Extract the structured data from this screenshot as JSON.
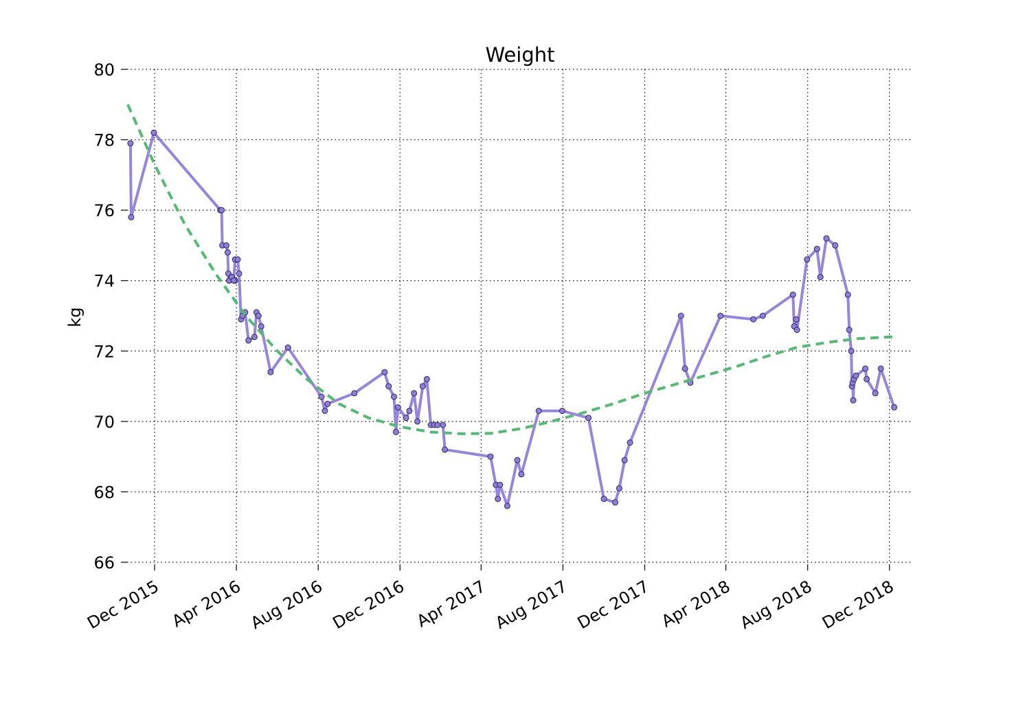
{
  "chart_data": {
    "type": "line",
    "title": "Weight",
    "xlabel": "",
    "ylabel": "kg",
    "xlim": [
      "2015-10-21",
      "2019-01-01"
    ],
    "ylim": [
      66,
      80
    ],
    "grid": true,
    "grid_style": "dotted",
    "x_ticks": [
      "2015-12-01",
      "2016-04-01",
      "2016-08-01",
      "2016-12-01",
      "2017-04-01",
      "2017-08-01",
      "2017-12-01",
      "2018-04-01",
      "2018-08-01",
      "2018-12-01"
    ],
    "x_tick_labels": [
      "Dec 2015",
      "Apr 2016",
      "Aug 2016",
      "Dec 2016",
      "Apr 2017",
      "Aug 2017",
      "Dec 2017",
      "Apr 2018",
      "Aug 2018",
      "Dec 2018"
    ],
    "y_ticks": [
      66,
      68,
      70,
      72,
      74,
      76,
      78,
      80
    ],
    "y_tick_labels": [
      "66",
      "68",
      "70",
      "72",
      "74",
      "76",
      "78",
      "80"
    ],
    "series": [
      {
        "type": "line",
        "color": "#9683e2",
        "marker_color": "#8f7de0",
        "points": [
          [
            "2015-10-26",
            77.9
          ],
          [
            "2015-10-27",
            75.8
          ],
          [
            "2015-11-30",
            78.2
          ],
          [
            "2016-03-08",
            76.0
          ],
          [
            "2016-03-10",
            76.0
          ],
          [
            "2016-03-11",
            75.0
          ],
          [
            "2016-03-17",
            75.0
          ],
          [
            "2016-03-19",
            74.8
          ],
          [
            "2016-03-20",
            74.2
          ],
          [
            "2016-03-21",
            74.0
          ],
          [
            "2016-03-25",
            74.1
          ],
          [
            "2016-03-30",
            74.0
          ],
          [
            "2016-03-25",
            74.1
          ],
          [
            "2016-03-28",
            74.0
          ],
          [
            "2016-03-30",
            74.6
          ],
          [
            "2016-04-03",
            74.6
          ],
          [
            "2016-04-05",
            74.2
          ],
          [
            "2016-04-08",
            72.9
          ],
          [
            "2016-04-10",
            73.0
          ],
          [
            "2016-04-14",
            73.1
          ],
          [
            "2016-04-19",
            72.3
          ],
          [
            "2016-04-28",
            72.4
          ],
          [
            "2016-05-01",
            73.1
          ],
          [
            "2016-05-04",
            73.0
          ],
          [
            "2016-05-08",
            72.7
          ],
          [
            "2016-05-22",
            71.4
          ],
          [
            "2016-06-17",
            72.1
          ],
          [
            "2016-08-06",
            70.7
          ],
          [
            "2016-08-11",
            70.3
          ],
          [
            "2016-08-15",
            70.5
          ],
          [
            "2016-09-24",
            70.8
          ],
          [
            "2016-11-08",
            71.4
          ],
          [
            "2016-11-14",
            71.0
          ],
          [
            "2016-11-22",
            70.7
          ],
          [
            "2016-11-25",
            69.7
          ],
          [
            "2016-11-28",
            70.4
          ],
          [
            "2016-12-10",
            70.1
          ],
          [
            "2016-12-15",
            70.3
          ],
          [
            "2016-12-22",
            70.8
          ],
          [
            "2016-12-27",
            70.0
          ],
          [
            "2017-01-04",
            71.0
          ],
          [
            "2017-01-10",
            71.2
          ],
          [
            "2017-01-16",
            69.9
          ],
          [
            "2017-01-21",
            69.9
          ],
          [
            "2017-01-26",
            69.9
          ],
          [
            "2017-02-03",
            69.9
          ],
          [
            "2017-02-06",
            69.2
          ],
          [
            "2017-04-15",
            69.0
          ],
          [
            "2017-04-23",
            68.2
          ],
          [
            "2017-04-26",
            67.8
          ],
          [
            "2017-04-29",
            68.2
          ],
          [
            "2017-05-10",
            67.6
          ],
          [
            "2017-05-25",
            68.9
          ],
          [
            "2017-05-31",
            68.5
          ],
          [
            "2017-06-26",
            70.3
          ],
          [
            "2017-07-31",
            70.3
          ],
          [
            "2017-09-08",
            70.1
          ],
          [
            "2017-10-01",
            67.8
          ],
          [
            "2017-10-18",
            67.7
          ],
          [
            "2017-10-24",
            68.1
          ],
          [
            "2017-11-01",
            68.9
          ],
          [
            "2017-11-09",
            69.4
          ],
          [
            "2018-01-24",
            73.0
          ],
          [
            "2018-01-30",
            71.5
          ],
          [
            "2018-02-07",
            71.1
          ],
          [
            "2018-03-24",
            73.0
          ],
          [
            "2018-05-12",
            72.9
          ],
          [
            "2018-05-26",
            73.0
          ],
          [
            "2018-07-10",
            73.6
          ],
          [
            "2018-07-12",
            72.7
          ],
          [
            "2018-07-15",
            72.9
          ],
          [
            "2018-07-16",
            72.6
          ],
          [
            "2018-07-31",
            74.6
          ],
          [
            "2018-08-15",
            74.9
          ],
          [
            "2018-08-20",
            74.1
          ],
          [
            "2018-08-29",
            75.2
          ],
          [
            "2018-09-11",
            75.0
          ],
          [
            "2018-09-30",
            73.6
          ],
          [
            "2018-10-02",
            72.6
          ],
          [
            "2018-10-05",
            72.0
          ],
          [
            "2018-10-06",
            71.0
          ],
          [
            "2018-10-07",
            71.1
          ],
          [
            "2018-10-08",
            70.6
          ],
          [
            "2018-10-09",
            71.2
          ],
          [
            "2018-10-12",
            71.3
          ],
          [
            "2018-10-26",
            71.5
          ],
          [
            "2018-10-28",
            71.2
          ],
          [
            "2018-11-10",
            70.8
          ],
          [
            "2018-11-18",
            71.5
          ],
          [
            "2018-12-08",
            70.4
          ]
        ]
      },
      {
        "type": "line",
        "style": "dashed",
        "color": "#4ebd70",
        "points": [
          [
            "2015-10-22",
            79.0
          ],
          [
            "2015-12-01",
            77.3
          ],
          [
            "2016-01-15",
            75.6
          ],
          [
            "2016-03-01",
            74.2
          ],
          [
            "2016-04-15",
            73.0
          ],
          [
            "2016-06-01",
            72.0
          ],
          [
            "2016-07-15",
            71.2
          ],
          [
            "2016-09-01",
            70.5
          ],
          [
            "2016-10-15",
            70.1
          ],
          [
            "2016-12-01",
            69.85
          ],
          [
            "2017-01-15",
            69.7
          ],
          [
            "2017-03-01",
            69.65
          ],
          [
            "2017-04-15",
            69.66
          ],
          [
            "2017-06-01",
            69.8
          ],
          [
            "2017-07-15",
            70.0
          ],
          [
            "2017-09-01",
            70.25
          ],
          [
            "2017-10-15",
            70.5
          ],
          [
            "2017-12-01",
            70.8
          ],
          [
            "2018-01-15",
            71.05
          ],
          [
            "2018-03-01",
            71.3
          ],
          [
            "2018-04-15",
            71.55
          ],
          [
            "2018-06-01",
            71.85
          ],
          [
            "2018-07-15",
            72.1
          ],
          [
            "2018-09-01",
            72.25
          ],
          [
            "2018-10-15",
            72.35
          ],
          [
            "2018-12-01",
            72.4
          ],
          [
            "2018-12-08",
            72.4
          ]
        ]
      }
    ]
  }
}
